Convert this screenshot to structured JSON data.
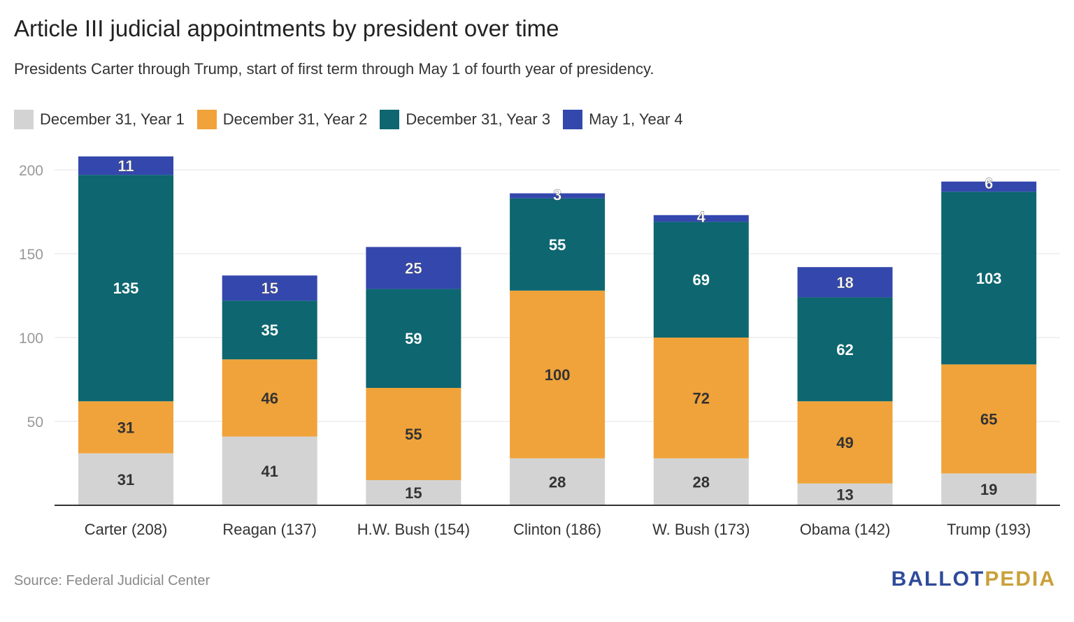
{
  "chart_data": {
    "type": "bar",
    "stacked": true,
    "title": "Article III judicial appointments by president over time",
    "subtitle": "Presidents Carter through Trump, start of first term through May 1 of fourth year of presidency.",
    "categories": [
      "Carter (208)",
      "Reagan (137)",
      "H.W. Bush (154)",
      "Clinton (186)",
      "W. Bush (173)",
      "Obama (142)",
      "Trump (193)"
    ],
    "series": [
      {
        "name": "December 31, Year 1",
        "color": "#d3d3d3",
        "values": [
          31,
          41,
          15,
          28,
          28,
          13,
          19
        ]
      },
      {
        "name": "December 31, Year 2",
        "color": "#f0a33a",
        "values": [
          31,
          46,
          55,
          100,
          72,
          49,
          65
        ]
      },
      {
        "name": "December 31, Year 3",
        "color": "#0d6670",
        "values": [
          135,
          35,
          59,
          55,
          69,
          62,
          103
        ]
      },
      {
        "name": "May 1, Year 4",
        "color": "#3447ad",
        "values": [
          11,
          15,
          25,
          3,
          4,
          18,
          6
        ]
      }
    ],
    "yticks": [
      50,
      100,
      150,
      200
    ],
    "ylim": [
      0,
      200
    ],
    "grid": true,
    "legend_position": "top-left"
  },
  "footer": {
    "source": "Source: Federal Judicial Center",
    "brand_part1": "BALLOT",
    "brand_part2": "PEDIA"
  }
}
